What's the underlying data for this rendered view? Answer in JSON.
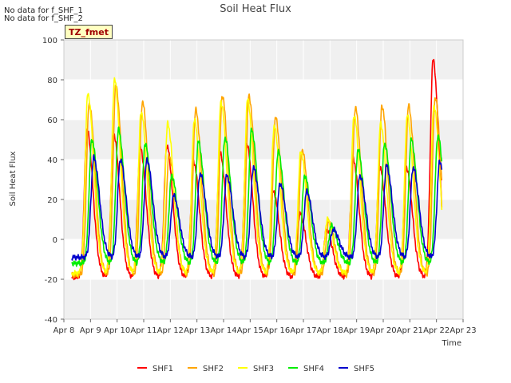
{
  "notes": [
    "No data for f_SHF_1",
    "No data for f_SHF_2"
  ],
  "tz_label": "TZ_fmet",
  "chart_data": {
    "type": "line",
    "title": "Soil Heat Flux",
    "xlabel": "Time",
    "ylabel": "Soil Heat Flux",
    "ylim": [
      -40,
      100
    ],
    "xlim": [
      8,
      23
    ],
    "yticks": [
      -40,
      -20,
      0,
      20,
      40,
      60,
      80,
      100
    ],
    "xticks": [
      8,
      9,
      10,
      11,
      12,
      13,
      14,
      15,
      16,
      17,
      18,
      19,
      20,
      21,
      22,
      23
    ],
    "xtick_labels": [
      "Apr 8",
      "Apr 9",
      "Apr 10",
      "Apr 11",
      "Apr 12",
      "Apr 13",
      "Apr 14",
      "Apr 15",
      "Apr 16",
      "Apr 17",
      "Apr 18",
      "Apr 19",
      "Apr 20",
      "Apr 21",
      "Apr 22",
      "Apr 23"
    ],
    "grid": true,
    "background_bands": true,
    "legend_position": "bottom",
    "x_start": 8.3,
    "x_end": 22.2,
    "daily_peaks": [
      9,
      10,
      11,
      12,
      13,
      14,
      15,
      16,
      17,
      18,
      19,
      20,
      21,
      22
    ],
    "series": [
      {
        "name": "SHF1",
        "color": "#ff0000",
        "peak_offset": -0.13,
        "base": -19,
        "peaks": [
          55,
          53,
          46,
          47,
          39,
          43,
          48,
          24,
          13,
          5,
          40,
          36,
          36,
          90
        ]
      },
      {
        "name": "SHF2",
        "color": "#ffa500",
        "peak_offset": -0.05,
        "base": -18,
        "peaks": [
          68,
          77,
          69,
          42,
          65,
          72,
          72,
          61,
          45,
          9,
          66,
          67,
          67,
          71
        ]
      },
      {
        "name": "SHF3",
        "color": "#ffff00",
        "peak_offset": -0.1,
        "base": -17,
        "peaks": [
          73,
          80,
          64,
          58,
          60,
          69,
          70,
          57,
          44,
          10,
          62,
          58,
          62,
          67
        ]
      },
      {
        "name": "SHF4",
        "color": "#00ee00",
        "peak_offset": 0.05,
        "base": -12,
        "peaks": [
          50,
          55,
          48,
          32,
          49,
          51,
          55,
          44,
          32,
          7,
          45,
          48,
          50,
          52
        ]
      },
      {
        "name": "SHF5",
        "color": "#0000cc",
        "peak_offset": 0.12,
        "base": -9,
        "peaks": [
          41,
          40,
          40,
          22,
          33,
          32,
          36,
          28,
          24,
          5,
          32,
          37,
          36,
          39
        ]
      }
    ]
  }
}
